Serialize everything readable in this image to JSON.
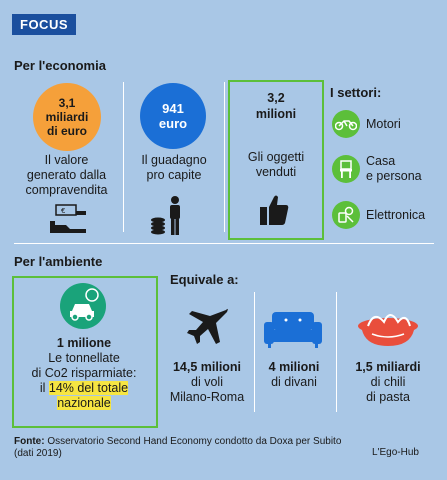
{
  "header": {
    "badge": "FOCUS"
  },
  "economy": {
    "title": "Per l'economia",
    "items": [
      {
        "value_line1": "3,1",
        "value_line2": "miliardi",
        "value_line3": "di euro",
        "desc_line1": "Il valore",
        "desc_line2": "generato dalla",
        "desc_line3": "compravendita",
        "color": "#f5a03a"
      },
      {
        "value_line1": "941",
        "value_line2": "euro",
        "desc_line1": "Il guadagno",
        "desc_line2": "pro capite",
        "color": "#1b6fd6"
      },
      {
        "value_line1": "3,2",
        "value_line2": "milioni",
        "desc_line1": "Gli oggetti",
        "desc_line2": "venduti"
      }
    ],
    "sectors_title": "I settori:",
    "sectors": [
      {
        "icon": "motorcycle-icon",
        "label_line1": "Motori",
        "label_line2": ""
      },
      {
        "icon": "chair-icon",
        "label_line1": "Casa",
        "label_line2": "e persona"
      },
      {
        "icon": "electronics-icon",
        "label_line1": "Elettronica",
        "label_line2": ""
      }
    ]
  },
  "environment": {
    "title": "Per l'ambiente",
    "main": {
      "value": "1 milione",
      "desc_line1": "Le tonnellate",
      "desc_line2": "di Co2 risparmiate:",
      "desc_pre": "il ",
      "highlight_line1": "14% del totale",
      "highlight_line2": "nazionale"
    },
    "equivale_title": "Equivale a:",
    "equivalents": [
      {
        "icon": "airplane-icon",
        "value": "14,5 milioni",
        "desc_line1": "di voli",
        "desc_line2": "Milano-Roma"
      },
      {
        "icon": "sofa-icon",
        "value": "4 milioni",
        "desc_line1": "di divani",
        "desc_line2": ""
      },
      {
        "icon": "pasta-icon",
        "value": "1,5 miliardi",
        "desc_line1": "di chili",
        "desc_line2": "di pasta"
      }
    ]
  },
  "footer": {
    "source_label": "Fonte:",
    "source_text": " Osservatorio Second Hand Economy condotto da Doxa  per Subito",
    "source_text2": "(dati 2019)",
    "credit": "L'Ego-Hub"
  },
  "colors": {
    "background": "#a9c7e6",
    "badge": "#1b4f9e",
    "green": "#5cbf3a",
    "orange": "#f5a03a",
    "blue": "#1b6fd6",
    "highlight": "#f6e542"
  }
}
